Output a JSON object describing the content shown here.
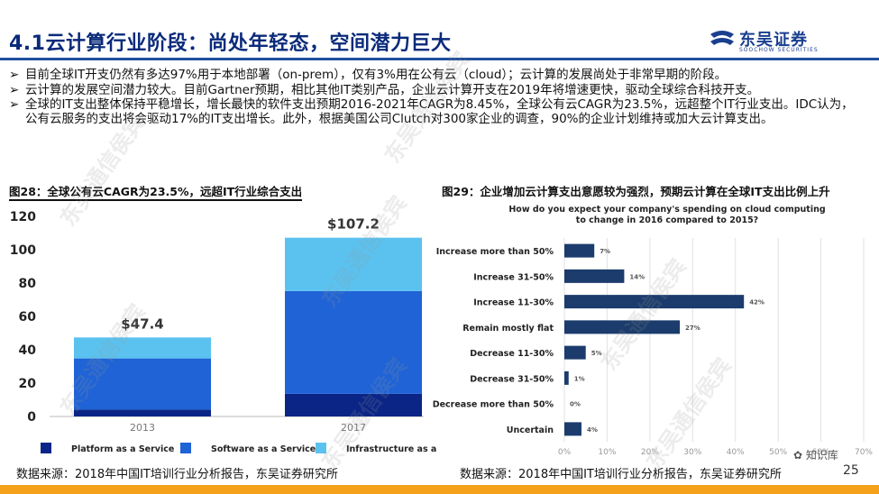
{
  "header": {
    "title": "4.1云计算行业阶段：尚处年轻态，空间潜力巨大",
    "logo_cn": "东吴证券",
    "logo_en": "SOOCHOW SECURITIES"
  },
  "bullets": [
    "目前全球IT开支仍然有多达97%用于本地部署（on-prem），仅有3%用在公有云（cloud）；云计算的发展尚处于非常早期的阶段。",
    "云计算的发展空间潜力较大。目前Gartner预期，相比其他IT类别产品，企业云计算开支在2019年将增速更快，驱动全球综合科技开支。",
    "全球的IT支出整体保持平稳增长，增长最快的软件支出预期2016-2021年CAGR为8.45%，全球公有云CAGR为23.5%，远超整个IT行业支出。IDC认为，公有云服务的支出将会驱动17%的IT支出增长。此外，根据美国公司Clutch对300家企业的调查，90%的企业计划维持或加大云计算支出。"
  ],
  "bullet_marker": "➢",
  "fig28": {
    "title": "图28：全球公有云CAGR为23.5%，远超IT行业综合支出",
    "source": "数据来源：2018年中国IT培训行业分析报告，东吴证券研究所"
  },
  "fig29": {
    "title": "图29：企业增加云计算支出意愿较为强烈，预期云计算在全球IT支出比例上升",
    "source": "数据来源：2018年中国IT培训行业分析报告，东吴证券研究所"
  },
  "page_number": "25",
  "wechat_label": "知识库",
  "watermark_text": "东吴通信侯宾",
  "colors": {
    "title_blue": "#0a2a7a",
    "paas": "#0a2586",
    "saas": "#1f63d6",
    "iaas": "#5bc2f0",
    "bar29": "#1b3c6c",
    "accent_orange": "#f5a21a"
  },
  "chart_data": [
    {
      "type": "bar",
      "stacked": true,
      "categories": [
        "2013",
        "2017"
      ],
      "series": [
        {
          "name": "Platform as a Service",
          "values": [
            4.2,
            13.6
          ]
        },
        {
          "name": "Software as a Service",
          "values": [
            30.6,
            61.6
          ]
        },
        {
          "name": "Infrastructure as a Service",
          "values": [
            12.6,
            32.0
          ]
        }
      ],
      "totals_labels": [
        "$47.4",
        "$107.2"
      ],
      "totals": [
        47.4,
        107.2
      ],
      "yticks": [
        0,
        20,
        40,
        60,
        80,
        100,
        120
      ],
      "ylim": [
        0,
        120
      ],
      "legend": "bottom",
      "grid": false
    },
    {
      "type": "bar",
      "orientation": "horizontal",
      "title": "How do you expect your company's spending on cloud computing to change in 2016 compared to 2015?",
      "categories": [
        "Increase more than 50%",
        "Increase 31-50%",
        "Increase 11-30%",
        "Remain mostly flat",
        "Decrease 11-30%",
        "Decrease 31-50%",
        "Decrease more than 50%",
        "Uncertain"
      ],
      "values": [
        7,
        14,
        42,
        27,
        5,
        1,
        0,
        4
      ],
      "data_labels": [
        "7%",
        "14%",
        "42%",
        "27%",
        "5%",
        "1%",
        "0%",
        "4%"
      ],
      "xticks": [
        "0%",
        "10%",
        "20%",
        "30%",
        "40%",
        "50%",
        "60%",
        "70%"
      ],
      "xlim": [
        0,
        70
      ],
      "grid": true
    }
  ]
}
